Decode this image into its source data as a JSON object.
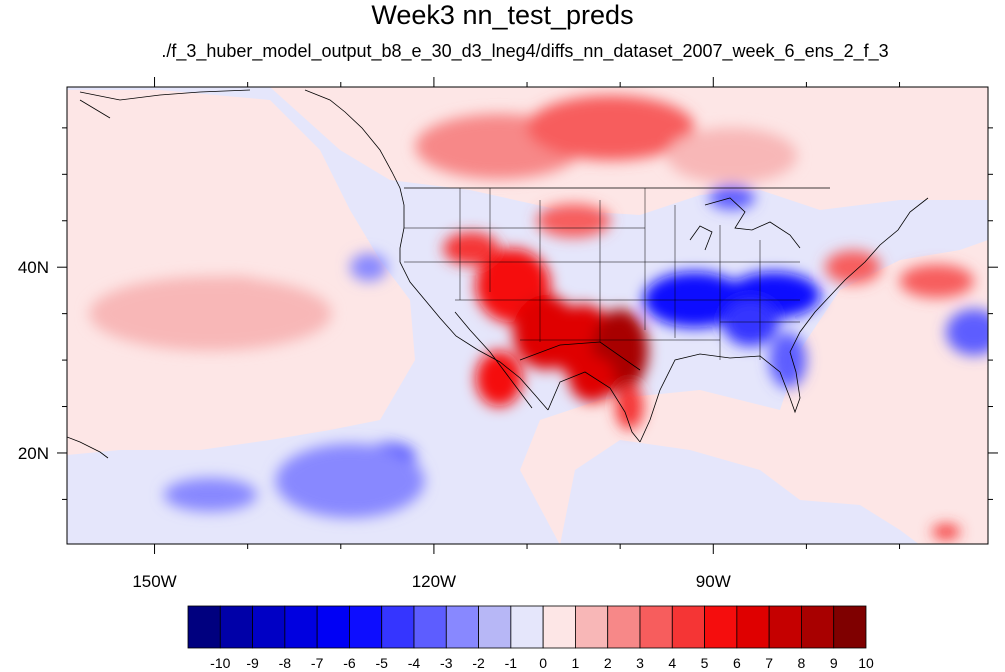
{
  "title": "Week3 nn_test_preds",
  "subtitle": "./f_3_huber_model_output_b8_e_30_d3_lneg4/diffs_nn_dataset_2007_week_6_ens_2_f_3",
  "chart_data": {
    "type": "heatmap",
    "title": "Week3 nn_test_preds",
    "subtitle": "./f_3_huber_model_output_b8_e_30_d3_lneg4/diffs_nn_dataset_2007_week_6_ens_2_f_3",
    "projection": "cylindrical equidistant",
    "xlim": [
      -159.4,
      -60.5
    ],
    "ylim": [
      10.2,
      59.4
    ],
    "x_ticks": [
      {
        "value": -150,
        "label": "150W"
      },
      {
        "value": -120,
        "label": "120W"
      },
      {
        "value": -90,
        "label": "90W"
      }
    ],
    "y_ticks": [
      {
        "value": 20,
        "label": "20N"
      },
      {
        "value": 40,
        "label": "40N"
      }
    ],
    "x_minor_ticks": [
      -140,
      -130,
      -110,
      -100,
      -80,
      -70
    ],
    "y_minor_ticks": [
      15,
      25,
      30,
      35,
      45,
      50,
      55
    ],
    "colorbar": {
      "labels": [
        "-10",
        "-9",
        "-8",
        "-7",
        "-6",
        "-5",
        "-4",
        "-3",
        "-2",
        "-1",
        "0",
        "1",
        "2",
        "3",
        "4",
        "5",
        "6",
        "7",
        "8",
        "9",
        "10"
      ],
      "colors": [
        "#00007f",
        "#0000a8",
        "#0000c5",
        "#0000e0",
        "#0000f5",
        "#0d0dff",
        "#3535ff",
        "#5d5dff",
        "#8888ff",
        "#b7b7f6",
        "#e5e6fb",
        "#fde6e6",
        "#f8b7b7",
        "#f78888",
        "#f75d5d",
        "#f53535",
        "#f50d0d",
        "#df0000",
        "#c50000",
        "#a80000",
        "#7f0000"
      ]
    },
    "anomaly_blobs": [
      {
        "lon": -113,
        "lat": 53,
        "rx": 9,
        "ry": 3.5,
        "level": 3
      },
      {
        "lon": -101,
        "lat": 55,
        "rx": 9,
        "ry": 3.5,
        "level": 4
      },
      {
        "lon": -88,
        "lat": 52,
        "rx": 7,
        "ry": 3,
        "level": 2
      },
      {
        "lon": -116,
        "lat": 42,
        "rx": 3,
        "ry": 1.8,
        "level": 5
      },
      {
        "lon": -105,
        "lat": 45,
        "rx": 4,
        "ry": 1.8,
        "level": 4
      },
      {
        "lon": -111.5,
        "lat": 38,
        "rx": 4,
        "ry": 4,
        "level": 6
      },
      {
        "lon": -108,
        "lat": 33,
        "rx": 3.5,
        "ry": 4,
        "level": 7
      },
      {
        "lon": -104,
        "lat": 32,
        "rx": 3.5,
        "ry": 4,
        "level": 7
      },
      {
        "lon": -100,
        "lat": 31,
        "rx": 3,
        "ry": 4.5,
        "level": 9
      },
      {
        "lon": -113,
        "lat": 28,
        "rx": 2.5,
        "ry": 3,
        "level": 6
      },
      {
        "lon": -103,
        "lat": 28,
        "rx": 2.5,
        "ry": 2.5,
        "level": 7
      },
      {
        "lon": -99,
        "lat": 25,
        "rx": 1.5,
        "ry": 2.5,
        "level": 5
      },
      {
        "lon": -75,
        "lat": 40,
        "rx": 3,
        "ry": 1.8,
        "level": 4
      },
      {
        "lon": -66,
        "lat": 38.5,
        "rx": 4,
        "ry": 1.8,
        "level": 4
      },
      {
        "lon": -142,
        "lat": 37.5,
        "rx": 5,
        "ry": 1.5,
        "level": 3
      },
      {
        "lon": -144,
        "lat": 35,
        "rx": 13,
        "ry": 4,
        "level": 2
      },
      {
        "lon": -65,
        "lat": 11.5,
        "rx": 1.5,
        "ry": 0.8,
        "level": 5
      },
      {
        "lon": -92,
        "lat": 36.5,
        "rx": 5.5,
        "ry": 3,
        "level": -5
      },
      {
        "lon": -83.5,
        "lat": 37,
        "rx": 5,
        "ry": 2.5,
        "level": -5
      },
      {
        "lon": -86,
        "lat": 34,
        "rx": 3,
        "ry": 2.5,
        "level": -4
      },
      {
        "lon": -82,
        "lat": 30,
        "rx": 2,
        "ry": 3,
        "level": -3
      },
      {
        "lon": -88,
        "lat": 47.5,
        "rx": 2.5,
        "ry": 1.3,
        "level": -3
      },
      {
        "lon": -129,
        "lat": 18,
        "rx": 5,
        "ry": 2.5,
        "level": -4
      },
      {
        "lon": -125,
        "lat": 19.5,
        "rx": 3,
        "ry": 1.5,
        "level": -5
      },
      {
        "lon": -129,
        "lat": 17,
        "rx": 8,
        "ry": 4,
        "level": -2
      },
      {
        "lon": -144,
        "lat": 15.5,
        "rx": 5,
        "ry": 1.8,
        "level": -2
      },
      {
        "lon": -62,
        "lat": 33,
        "rx": 3,
        "ry": 2.5,
        "level": -3
      },
      {
        "lon": -127,
        "lat": 40,
        "rx": 2,
        "ry": 1.5,
        "level": -2
      }
    ]
  }
}
